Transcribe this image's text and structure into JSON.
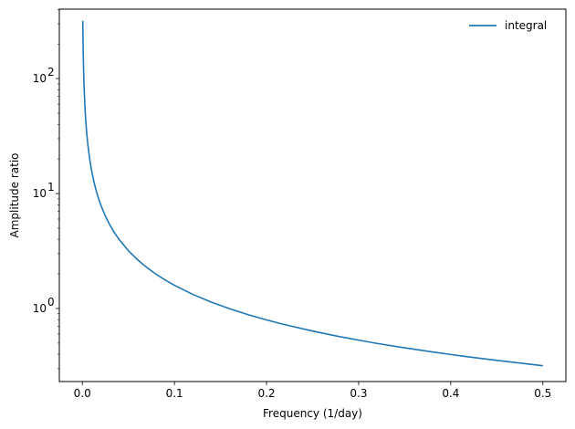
{
  "chart_data": {
    "type": "line",
    "title": "",
    "xlabel": "Frequency (1/day)",
    "ylabel": "Amplitude ratio",
    "xlim": [
      -0.025,
      0.525
    ],
    "ylim": [
      0.2316,
      402.1
    ],
    "yscale": "log",
    "grid": false,
    "legend_position": "top-right",
    "x_ticks": [
      {
        "value": 0.0,
        "label": "0.0"
      },
      {
        "value": 0.1,
        "label": "0.1"
      },
      {
        "value": 0.2,
        "label": "0.2"
      },
      {
        "value": 0.3,
        "label": "0.3"
      },
      {
        "value": 0.4,
        "label": "0.4"
      },
      {
        "value": 0.5,
        "label": "0.5"
      }
    ],
    "y_ticks": [
      {
        "value": 1,
        "base": "10",
        "exp": "0"
      },
      {
        "value": 10,
        "base": "10",
        "exp": "1"
      },
      {
        "value": 100,
        "base": "10",
        "exp": "2"
      }
    ],
    "series": [
      {
        "name": "integral",
        "color": "#1f77b4",
        "x": [
          0.0005,
          0.0007,
          0.001,
          0.0015,
          0.002,
          0.003,
          0.004,
          0.005,
          0.006,
          0.008,
          0.01,
          0.0125,
          0.015,
          0.0175,
          0.02,
          0.025,
          0.03,
          0.035,
          0.04,
          0.05,
          0.06,
          0.07,
          0.08,
          0.09,
          0.1,
          0.12,
          0.14,
          0.16,
          0.18,
          0.2,
          0.22,
          0.25,
          0.28,
          0.3,
          0.32,
          0.35,
          0.38,
          0.4,
          0.42,
          0.45,
          0.48,
          0.5
        ],
        "y": [
          318.3,
          227.4,
          159.2,
          106.1,
          79.58,
          53.05,
          39.79,
          31.83,
          26.53,
          19.89,
          15.92,
          12.73,
          10.61,
          9.095,
          7.958,
          6.366,
          5.305,
          4.547,
          3.979,
          3.183,
          2.653,
          2.274,
          1.989,
          1.768,
          1.592,
          1.326,
          1.137,
          0.995,
          0.884,
          0.796,
          0.723,
          0.637,
          0.568,
          0.531,
          0.497,
          0.455,
          0.419,
          0.398,
          0.379,
          0.354,
          0.332,
          0.318
        ]
      }
    ]
  }
}
